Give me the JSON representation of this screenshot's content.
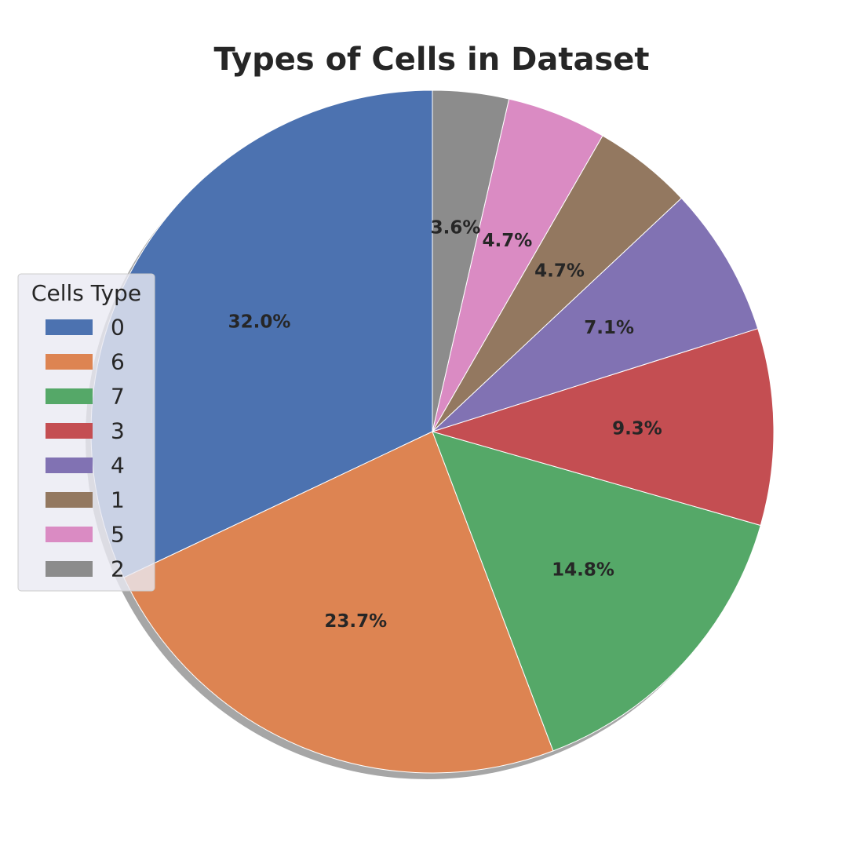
{
  "chart_data": {
    "type": "pie",
    "title": "Types of Cells in Dataset",
    "start_angle_deg": 90,
    "direction": "counterclockwise",
    "shadow": true,
    "categories": [
      "0",
      "6",
      "7",
      "3",
      "4",
      "1",
      "5",
      "2"
    ],
    "values": [
      32.0,
      23.7,
      14.8,
      9.3,
      7.1,
      4.7,
      4.7,
      3.6
    ],
    "labels": [
      "32.0%",
      "23.7%",
      "14.8%",
      "9.3%",
      "7.1%",
      "4.7%",
      "4.7%",
      "3.6%"
    ],
    "colors": [
      "#4c72b0",
      "#dd8452",
      "#55a868",
      "#c44e52",
      "#8172b3",
      "#937860",
      "#da8bc3",
      "#8c8c8c"
    ],
    "legend": {
      "title": "Cells Type",
      "placement": "center-left",
      "entries": [
        "0",
        "6",
        "7",
        "3",
        "4",
        "1",
        "5",
        "2"
      ]
    }
  }
}
